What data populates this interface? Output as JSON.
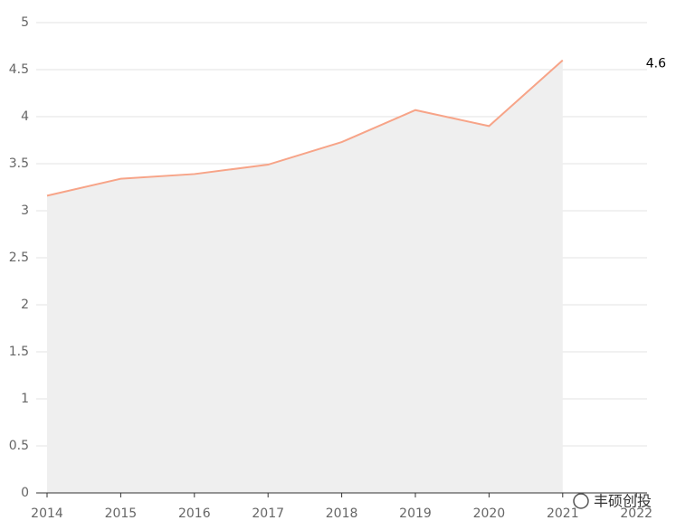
{
  "chart_data": {
    "type": "line",
    "categories": [
      "2014",
      "2015",
      "2016",
      "2017",
      "2018",
      "2019",
      "2020",
      "2021",
      "2022"
    ],
    "series": [
      {
        "color": "#f7a488",
        "area_color": "#efefef",
        "values": [
          3.16,
          3.34,
          3.39,
          3.49,
          3.73,
          4.07,
          3.9,
          4.6,
          null
        ]
      }
    ],
    "ylim": [
      0,
      5
    ],
    "yticks": [
      0,
      0.5,
      1,
      1.5,
      2,
      2.5,
      3,
      3.5,
      4,
      4.5,
      5
    ],
    "grid": true
  },
  "watermark": "丰硕创投"
}
